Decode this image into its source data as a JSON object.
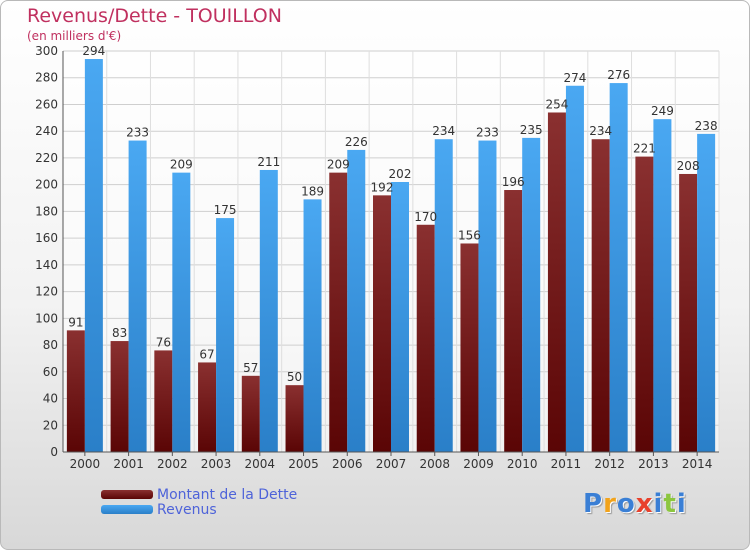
{
  "chart_data": {
    "type": "bar",
    "title": "Revenus/Dette - TOUILLON",
    "subtitle": "(en milliers d'€)",
    "categories": [
      "2000",
      "2001",
      "2002",
      "2003",
      "2004",
      "2005",
      "2006",
      "2007",
      "2008",
      "2009",
      "2010",
      "2011",
      "2012",
      "2013",
      "2014"
    ],
    "series": [
      {
        "name": "Montant de la Dette",
        "color": "#7a1e1e",
        "values": [
          91,
          83,
          76,
          67,
          57,
          50,
          209,
          192,
          170,
          156,
          196,
          254,
          234,
          221,
          208
        ]
      },
      {
        "name": "Revenus",
        "color": "#3c9be8",
        "values": [
          294,
          233,
          209,
          175,
          211,
          189,
          226,
          202,
          234,
          233,
          235,
          274,
          276,
          249,
          238
        ]
      }
    ],
    "ylim": [
      0,
      300
    ],
    "yticks": [
      0,
      20,
      40,
      60,
      80,
      100,
      120,
      140,
      160,
      180,
      200,
      220,
      240,
      260,
      280,
      300
    ],
    "grid": true,
    "legend_position": "bottom-left"
  },
  "logo": {
    "letters": [
      "P",
      "r",
      "o",
      "x",
      "i",
      "t",
      "i"
    ],
    "colors": [
      "#3a7fd5",
      "#f2a31b",
      "#3a7fd5",
      "#e8412c",
      "#3a7fd5",
      "#8cc63f",
      "#3a7fd5"
    ]
  }
}
